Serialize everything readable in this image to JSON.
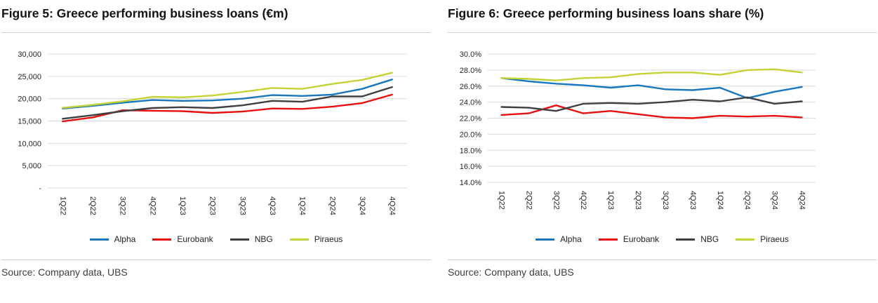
{
  "figures": [
    {
      "title": "Figure 5: Greece performing business loans (€m)",
      "source": "Source: Company data, UBS",
      "chart_data": {
        "type": "line",
        "title": "Figure 5: Greece performing business loans (€m)",
        "categories": [
          "1Q22",
          "2Q22",
          "3Q22",
          "4Q22",
          "1Q23",
          "2Q23",
          "3Q23",
          "4Q23",
          "1Q24",
          "2Q24",
          "3Q24",
          "4Q24"
        ],
        "series": [
          {
            "name": "Alpha",
            "color": "#1877bd",
            "values": [
              17800,
              18400,
              19100,
              19700,
              19500,
              19600,
              20000,
              20800,
              20600,
              20900,
              22200,
              24300
            ]
          },
          {
            "name": "Eurobank",
            "color": "#e8100f",
            "values": [
              14900,
              15800,
              17400,
              17300,
              17200,
              16800,
              17100,
              17800,
              17700,
              18200,
              19000,
              20900
            ]
          },
          {
            "name": "NBG",
            "color": "#404040",
            "values": [
              15500,
              16300,
              17200,
              17900,
              18100,
              17900,
              18500,
              19500,
              19300,
              20500,
              20500,
              22600
            ]
          },
          {
            "name": "Piraeus",
            "color": "#c4d234",
            "values": [
              17950,
              18600,
              19400,
              20400,
              20300,
              20700,
              21500,
              22400,
              22200,
              23300,
              24200,
              25800
            ]
          }
        ],
        "ylim": [
          0,
          30000
        ],
        "ytick_step": 5000,
        "ytick_labels": [
          "-",
          "5,000",
          "10,000",
          "15,000",
          "20,000",
          "25,000",
          "30,000"
        ],
        "grid": true,
        "legend_position": "bottom",
        "grid_color": "#d9d9d9"
      }
    },
    {
      "title": "Figure 6: Greece performing business loans share (%)",
      "source": "Source: Company data, UBS",
      "chart_data": {
        "type": "line",
        "title": "Figure 6: Greece performing business loans share (%)",
        "categories": [
          "1Q22",
          "2Q22",
          "3Q22",
          "4Q22",
          "1Q23",
          "2Q23",
          "3Q23",
          "4Q23",
          "1Q24",
          "2Q24",
          "3Q24",
          "4Q24"
        ],
        "series": [
          {
            "name": "Alpha",
            "color": "#1877bd",
            "values": [
              27.0,
              26.6,
              26.3,
              26.1,
              25.8,
              26.1,
              25.6,
              25.5,
              25.8,
              24.5,
              25.3,
              25.9
            ]
          },
          {
            "name": "Eurobank",
            "color": "#e8100f",
            "values": [
              22.4,
              22.6,
              23.6,
              22.6,
              22.9,
              22.5,
              22.1,
              22.0,
              22.3,
              22.2,
              22.3,
              22.1
            ]
          },
          {
            "name": "NBG",
            "color": "#404040",
            "values": [
              23.4,
              23.3,
              22.9,
              23.8,
              23.9,
              23.8,
              24.0,
              24.3,
              24.1,
              24.6,
              23.8,
              24.1
            ]
          },
          {
            "name": "Piraeus",
            "color": "#c4d234",
            "values": [
              27.0,
              26.9,
              26.7,
              27.0,
              27.1,
              27.5,
              27.7,
              27.7,
              27.4,
              28.0,
              28.1,
              27.7
            ]
          }
        ],
        "ylim": [
          14,
          30
        ],
        "ytick_step": 2,
        "ytick_labels": [
          "14.0%",
          "16.0%",
          "18.0%",
          "20.0%",
          "22.0%",
          "24.0%",
          "26.0%",
          "28.0%",
          "30.0%"
        ],
        "grid": true,
        "legend_position": "bottom",
        "grid_color": "#d9d9d9"
      }
    }
  ]
}
